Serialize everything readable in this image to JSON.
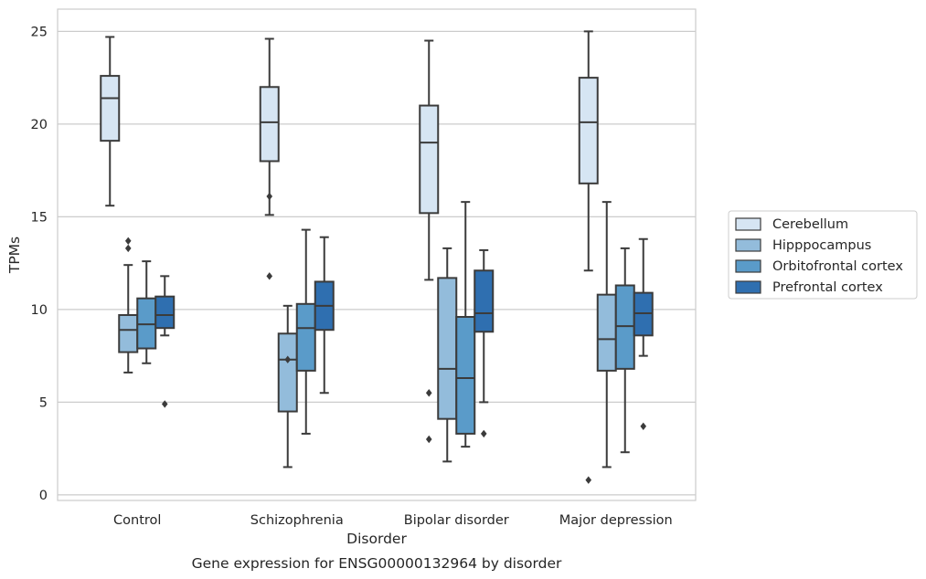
{
  "chart_data": {
    "type": "box",
    "title": "",
    "caption": "Gene expression for ENSG00000132964 by disorder",
    "xlabel": "Disorder",
    "ylabel": "TPMs",
    "ylim": [
      -0.3,
      26.2
    ],
    "yticks": [
      0,
      5,
      10,
      15,
      20,
      25
    ],
    "categories": [
      "Control",
      "Schizophrenia",
      "Bipolar disorder",
      "Major depression"
    ],
    "grid": "horizontal",
    "legend_position": "right",
    "series": [
      {
        "name": "Cerebellum",
        "color": "#d6e5f3",
        "boxes": [
          {
            "whislo": 15.6,
            "q1": 19.1,
            "med": 21.4,
            "q3": 22.6,
            "whishi": 24.7,
            "fliers": []
          },
          {
            "whislo": 15.1,
            "q1": 18.0,
            "med": 20.1,
            "q3": 22.0,
            "whishi": 24.6,
            "fliers": [
              16.1,
              11.8
            ]
          },
          {
            "whislo": 11.6,
            "q1": 15.2,
            "med": 19.0,
            "q3": 21.0,
            "whishi": 24.5,
            "fliers": [
              5.5,
              3.0
            ]
          },
          {
            "whislo": 12.1,
            "q1": 16.8,
            "med": 20.1,
            "q3": 22.5,
            "whishi": 25.0,
            "fliers": [
              0.8
            ]
          }
        ]
      },
      {
        "name": "Hipppocampus",
        "color": "#93bcdb",
        "boxes": [
          {
            "whislo": 6.6,
            "q1": 7.7,
            "med": 8.9,
            "q3": 9.7,
            "whishi": 12.4,
            "fliers": [
              13.7,
              13.3
            ]
          },
          {
            "whislo": 1.5,
            "q1": 4.5,
            "med": 7.3,
            "q3": 8.7,
            "whishi": 10.2,
            "fliers": [
              7.3
            ]
          },
          {
            "whislo": 1.8,
            "q1": 4.1,
            "med": 6.8,
            "q3": 11.7,
            "whishi": 13.3,
            "fliers": []
          },
          {
            "whislo": 1.5,
            "q1": 6.7,
            "med": 8.4,
            "q3": 10.8,
            "whishi": 15.8,
            "fliers": []
          }
        ]
      },
      {
        "name": "Orbitofrontal cortex",
        "color": "#5a9bc9",
        "boxes": [
          {
            "whislo": 7.1,
            "q1": 7.9,
            "med": 9.2,
            "q3": 10.6,
            "whishi": 12.6,
            "fliers": []
          },
          {
            "whislo": 3.3,
            "q1": 6.7,
            "med": 9.0,
            "q3": 10.3,
            "whishi": 14.3,
            "fliers": []
          },
          {
            "whislo": 2.6,
            "q1": 3.3,
            "med": 6.3,
            "q3": 9.6,
            "whishi": 15.8,
            "fliers": []
          },
          {
            "whislo": 2.3,
            "q1": 6.8,
            "med": 9.1,
            "q3": 11.3,
            "whishi": 13.3,
            "fliers": []
          }
        ]
      },
      {
        "name": "Prefrontal cortex",
        "color": "#2f6fb0",
        "boxes": [
          {
            "whislo": 8.6,
            "q1": 9.0,
            "med": 9.7,
            "q3": 10.7,
            "whishi": 11.8,
            "fliers": [
              4.9
            ]
          },
          {
            "whislo": 5.5,
            "q1": 8.9,
            "med": 10.2,
            "q3": 11.5,
            "whishi": 13.9,
            "fliers": []
          },
          {
            "whislo": 5.0,
            "q1": 8.8,
            "med": 9.8,
            "q3": 12.1,
            "whishi": 13.2,
            "fliers": [
              3.3
            ]
          },
          {
            "whislo": 7.5,
            "q1": 8.6,
            "med": 9.8,
            "q3": 10.9,
            "whishi": 13.8,
            "fliers": [
              3.7
            ]
          }
        ]
      }
    ]
  }
}
